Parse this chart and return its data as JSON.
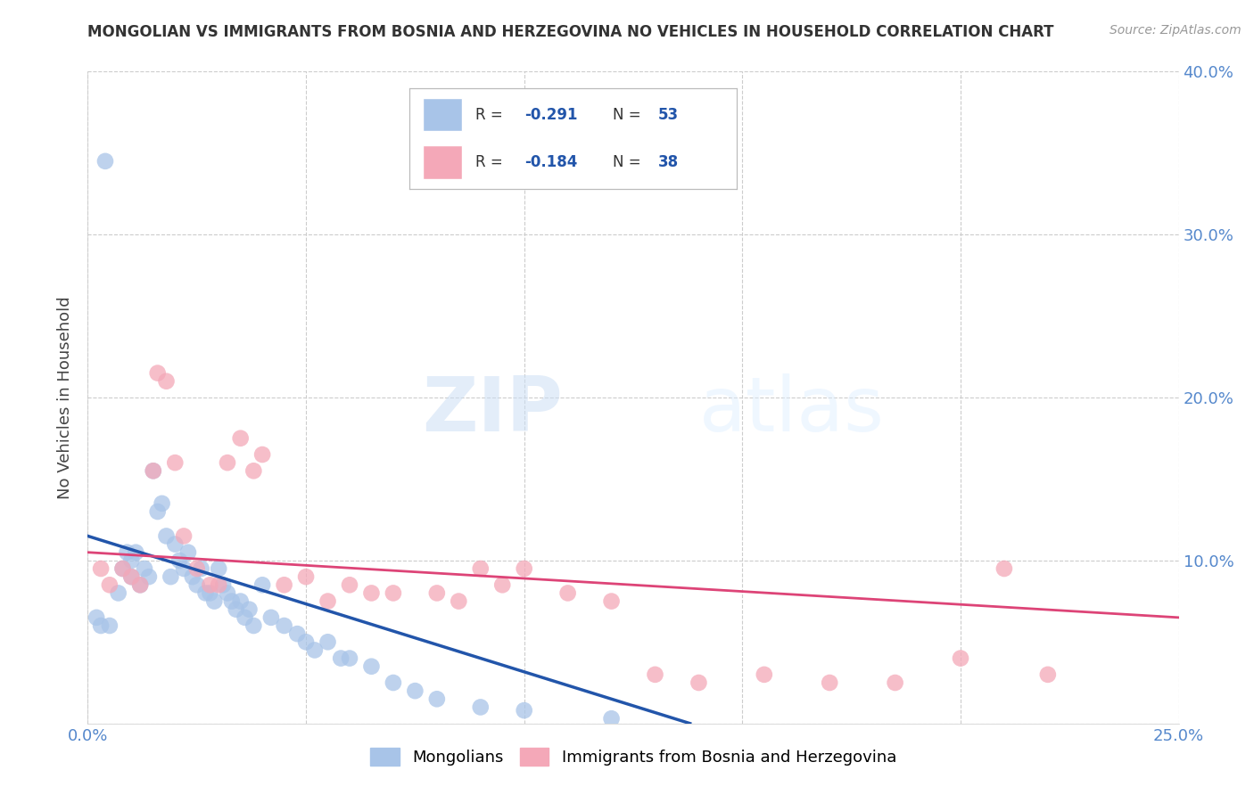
{
  "title": "MONGOLIAN VS IMMIGRANTS FROM BOSNIA AND HERZEGOVINA NO VEHICLES IN HOUSEHOLD CORRELATION CHART",
  "source": "Source: ZipAtlas.com",
  "ylabel": "No Vehicles in Household",
  "legend_blue_r": "R = -0.291",
  "legend_blue_n": "N = 53",
  "legend_pink_r": "R = -0.184",
  "legend_pink_n": "N = 38",
  "legend_label_blue": "Mongolians",
  "legend_label_pink": "Immigrants from Bosnia and Herzegovina",
  "xlim": [
    0.0,
    0.25
  ],
  "ylim": [
    0.0,
    0.4
  ],
  "x_ticks": [
    0.0,
    0.05,
    0.1,
    0.15,
    0.2,
    0.25
  ],
  "y_ticks": [
    0.0,
    0.1,
    0.2,
    0.3,
    0.4
  ],
  "blue_color": "#a8c4e8",
  "pink_color": "#f4a8b8",
  "blue_line_color": "#2255aa",
  "pink_line_color": "#dd4477",
  "axis_color": "#5588cc",
  "grid_color": "#cccccc",
  "title_color": "#333333",
  "blue_x": [
    0.004,
    0.002,
    0.003,
    0.005,
    0.007,
    0.008,
    0.009,
    0.01,
    0.01,
    0.011,
    0.012,
    0.013,
    0.014,
    0.015,
    0.016,
    0.017,
    0.018,
    0.019,
    0.02,
    0.021,
    0.022,
    0.023,
    0.024,
    0.025,
    0.026,
    0.027,
    0.028,
    0.029,
    0.03,
    0.031,
    0.032,
    0.033,
    0.034,
    0.035,
    0.036,
    0.037,
    0.038,
    0.04,
    0.042,
    0.045,
    0.048,
    0.05,
    0.052,
    0.055,
    0.058,
    0.06,
    0.065,
    0.07,
    0.075,
    0.08,
    0.09,
    0.1,
    0.12
  ],
  "blue_y": [
    0.345,
    0.065,
    0.06,
    0.06,
    0.08,
    0.095,
    0.105,
    0.1,
    0.09,
    0.105,
    0.085,
    0.095,
    0.09,
    0.155,
    0.13,
    0.135,
    0.115,
    0.09,
    0.11,
    0.1,
    0.095,
    0.105,
    0.09,
    0.085,
    0.095,
    0.08,
    0.08,
    0.075,
    0.095,
    0.085,
    0.08,
    0.075,
    0.07,
    0.075,
    0.065,
    0.07,
    0.06,
    0.085,
    0.065,
    0.06,
    0.055,
    0.05,
    0.045,
    0.05,
    0.04,
    0.04,
    0.035,
    0.025,
    0.02,
    0.015,
    0.01,
    0.008,
    0.003
  ],
  "pink_x": [
    0.003,
    0.005,
    0.008,
    0.01,
    0.012,
    0.015,
    0.016,
    0.018,
    0.02,
    0.022,
    0.025,
    0.028,
    0.03,
    0.032,
    0.035,
    0.038,
    0.04,
    0.045,
    0.05,
    0.055,
    0.06,
    0.065,
    0.07,
    0.08,
    0.085,
    0.09,
    0.095,
    0.1,
    0.11,
    0.12,
    0.13,
    0.14,
    0.155,
    0.17,
    0.185,
    0.2,
    0.21,
    0.22
  ],
  "pink_y": [
    0.095,
    0.085,
    0.095,
    0.09,
    0.085,
    0.155,
    0.215,
    0.21,
    0.16,
    0.115,
    0.095,
    0.085,
    0.085,
    0.16,
    0.175,
    0.155,
    0.165,
    0.085,
    0.09,
    0.075,
    0.085,
    0.08,
    0.08,
    0.08,
    0.075,
    0.095,
    0.085,
    0.095,
    0.08,
    0.075,
    0.03,
    0.025,
    0.03,
    0.025,
    0.025,
    0.04,
    0.095,
    0.03
  ],
  "blue_line_x": [
    0.0,
    0.138
  ],
  "blue_line_y": [
    0.115,
    0.0
  ],
  "pink_line_x": [
    0.0,
    0.25
  ],
  "pink_line_y": [
    0.105,
    0.065
  ]
}
